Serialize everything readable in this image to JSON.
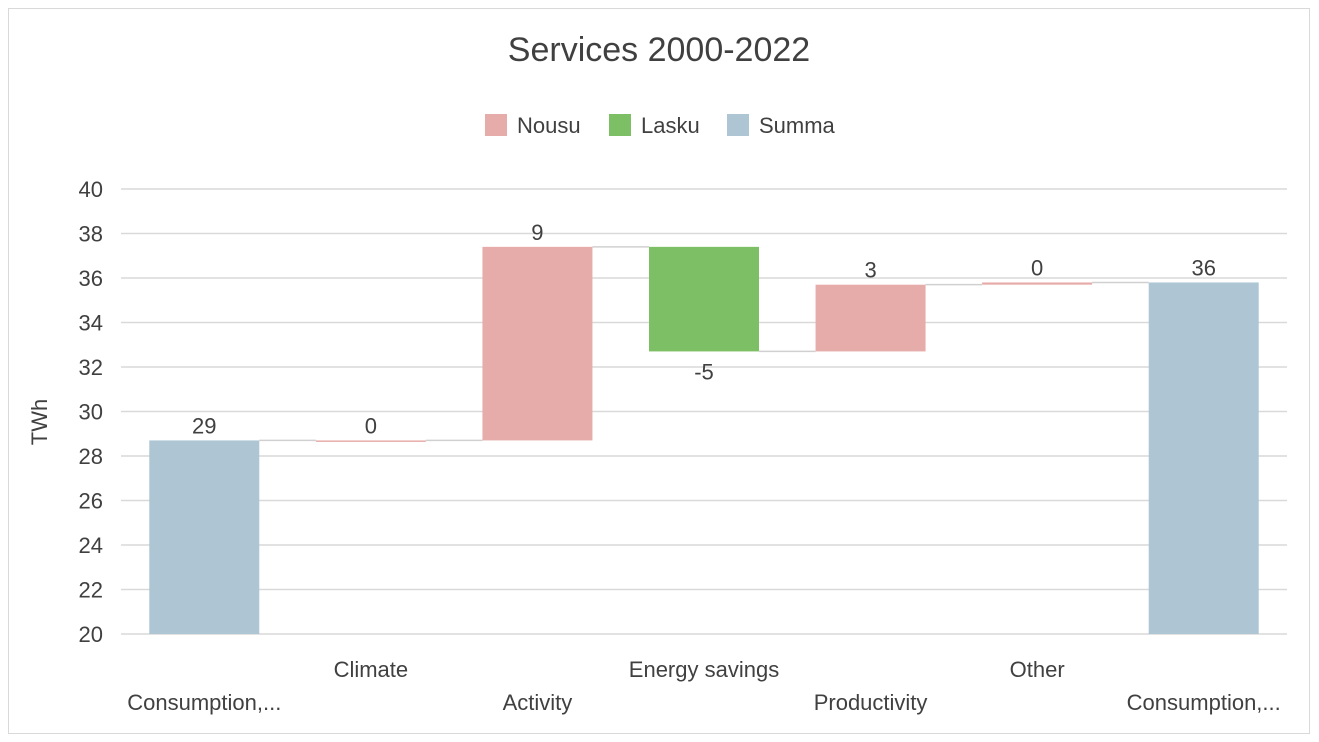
{
  "chart_data": {
    "type": "bar",
    "title": "Services 2000-2022",
    "ylabel": "TWh",
    "xlabel": "",
    "ylim": [
      20,
      40
    ],
    "yticks": [
      20,
      22,
      24,
      26,
      28,
      30,
      32,
      34,
      36,
      38,
      40
    ],
    "grid": true,
    "legend_position": "top",
    "legend": [
      {
        "name": "Nousu",
        "color": "#e6aca9"
      },
      {
        "name": "Lasku",
        "color": "#7cbf64"
      },
      {
        "name": "Summa",
        "color": "#aec6d3"
      }
    ],
    "categories": [
      "Consumption,...",
      "Climate",
      "Activity",
      "Energy savings",
      "Productivity",
      "Other",
      "Consumption,..."
    ],
    "bars": [
      {
        "kind": "Summa",
        "start": 20,
        "end": 28.7,
        "label": "29"
      },
      {
        "kind": "Nousu",
        "start": 28.7,
        "end": 28.7,
        "label": "0"
      },
      {
        "kind": "Nousu",
        "start": 28.7,
        "end": 37.4,
        "label": "9"
      },
      {
        "kind": "Lasku",
        "start": 37.4,
        "end": 32.7,
        "label": "-5"
      },
      {
        "kind": "Nousu",
        "start": 32.7,
        "end": 35.7,
        "label": "3"
      },
      {
        "kind": "Nousu",
        "start": 35.7,
        "end": 35.8,
        "label": "0"
      },
      {
        "kind": "Summa",
        "start": 20,
        "end": 35.8,
        "label": "36"
      }
    ]
  }
}
